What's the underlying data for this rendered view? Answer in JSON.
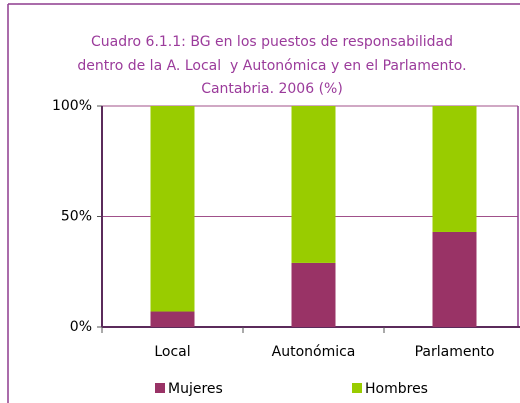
{
  "chart_data": {
    "type": "stacked_bar",
    "title": [
      "Cuadro 6.1.1: BG en los puestos de responsabilidad",
      "dentro de la A. Local  y Autonómica y en el Parlamento.",
      "Cantabria. 2006 (%)"
    ],
    "categories": [
      "Local",
      "Autonómica",
      "Parlamento"
    ],
    "series": [
      {
        "name": "Mujeres",
        "color": "#993366",
        "values": [
          7,
          29,
          43
        ]
      },
      {
        "name": "Hombres",
        "color": "#99cc00",
        "values": [
          93,
          71,
          57
        ]
      }
    ],
    "ylim": [
      0,
      100
    ],
    "yticks": [
      {
        "value": 0,
        "label": "0%"
      },
      {
        "value": 50,
        "label": "50%"
      },
      {
        "value": 100,
        "label": "100%"
      }
    ],
    "grid": true,
    "legend": "bottom"
  }
}
